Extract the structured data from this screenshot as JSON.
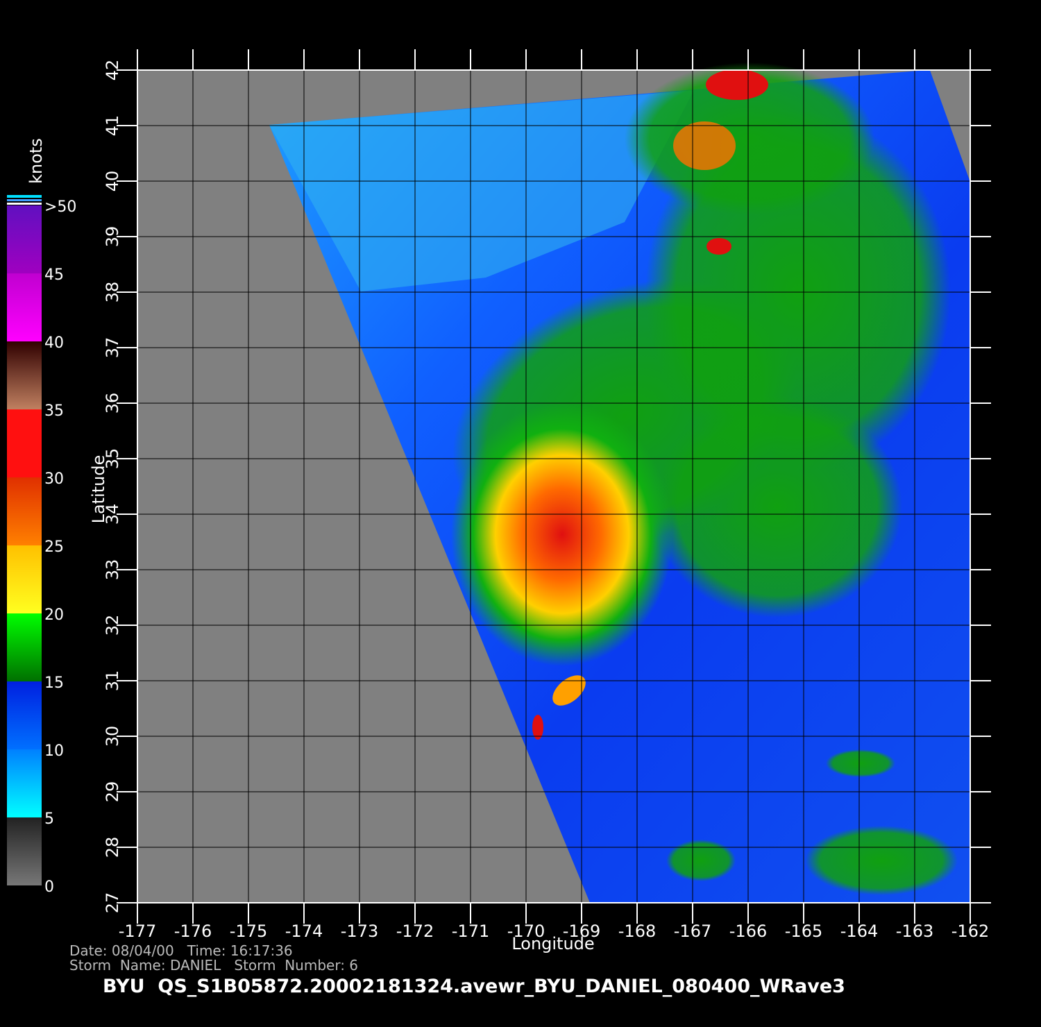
{
  "map": {
    "title": "BYU  QS_S1B05872.20002181324.avewr_BYU_DANIEL_080400_WRave3",
    "info_lines": [
      "Date: 08/04/00   Time: 16:17:36",
      "Storm  Name: DANIEL   Storm  Number: 6"
    ],
    "x_label": "Longitude",
    "y_label": "Latitude",
    "xlim": [
      -177,
      -162
    ],
    "ylim": [
      27,
      42
    ],
    "xticks": [
      -177,
      -176,
      -175,
      -174,
      -173,
      -172,
      -171,
      -170,
      -169,
      -168,
      -167,
      -166,
      -165,
      -164,
      -163,
      -162
    ],
    "yticks": [
      27,
      28,
      29,
      30,
      31,
      32,
      33,
      34,
      35,
      36,
      37,
      38,
      39,
      40,
      41,
      42
    ],
    "grid": true,
    "colorbar": {
      "label": "knots",
      "ticks": [
        0,
        5,
        10,
        15,
        20,
        25,
        30,
        35,
        40,
        45,
        {
          "value": 50,
          "label": ">50"
        }
      ]
    }
  }
}
